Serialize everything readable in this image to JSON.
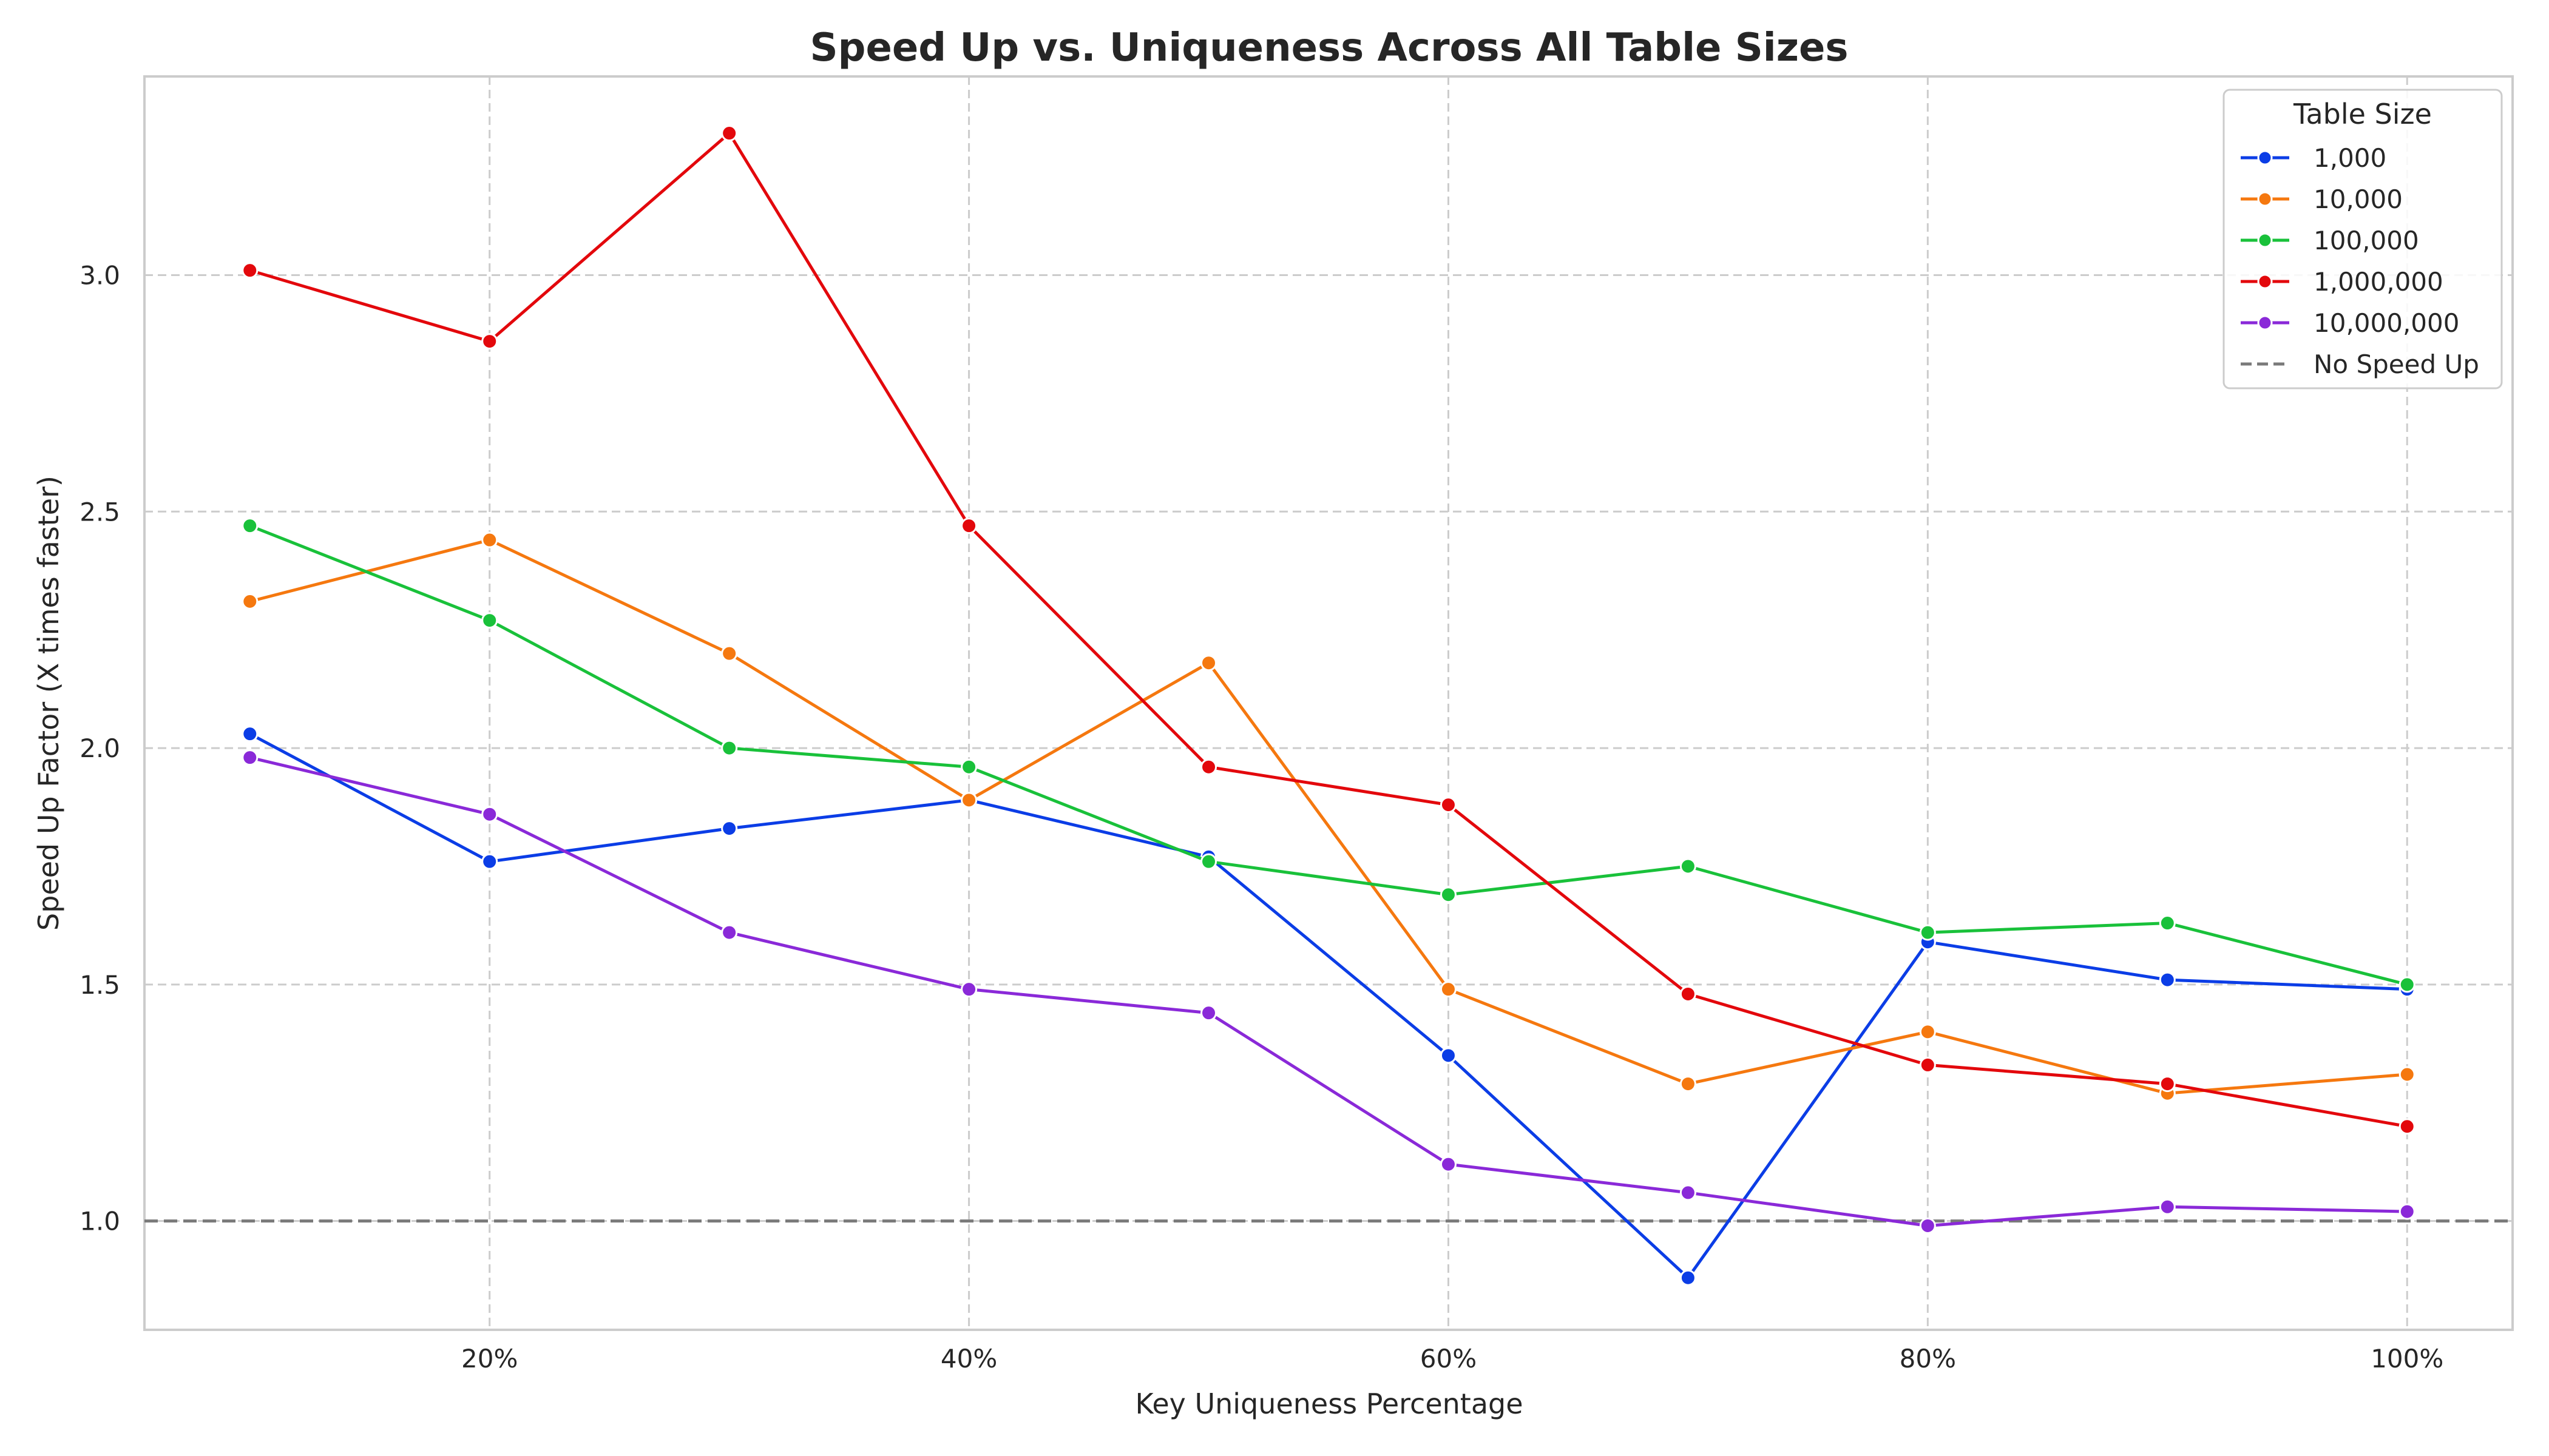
{
  "chart_data": {
    "type": "line",
    "title": "Speed Up vs. Uniqueness Across All Table Sizes",
    "xlabel": "Key Uniqueness Percentage",
    "ylabel": "Speed Up Factor (X times faster)",
    "x": [
      10,
      20,
      30,
      40,
      50,
      60,
      70,
      80,
      90,
      100
    ],
    "x_ticks": [
      20,
      40,
      60,
      80,
      100
    ],
    "x_tick_labels": [
      "20%",
      "40%",
      "60%",
      "80%",
      "100%"
    ],
    "xlim": [
      5.6,
      104.4
    ],
    "y_ticks": [
      1.0,
      1.5,
      2.0,
      2.5,
      3.0
    ],
    "y_tick_labels": [
      "1.0",
      "1.5",
      "2.0",
      "2.5",
      "3.0"
    ],
    "ylim": [
      0.77,
      3.42
    ],
    "grid": true,
    "legend_position": "top-right",
    "legend_title": "Table Size",
    "series": [
      {
        "name": "1,000",
        "color": "#0b3de6",
        "values": [
          2.03,
          1.76,
          1.83,
          1.89,
          1.77,
          1.35,
          0.88,
          1.59,
          1.51,
          1.49
        ]
      },
      {
        "name": "10,000",
        "color": "#f5780f",
        "values": [
          2.31,
          2.44,
          2.2,
          1.89,
          2.18,
          1.49,
          1.29,
          1.4,
          1.27,
          1.31
        ]
      },
      {
        "name": "100,000",
        "color": "#19c13a",
        "values": [
          2.47,
          2.27,
          2.0,
          1.96,
          1.76,
          1.69,
          1.75,
          1.61,
          1.63,
          1.5
        ]
      },
      {
        "name": "1,000,000",
        "color": "#e3080c",
        "values": [
          3.01,
          2.86,
          3.3,
          2.47,
          1.96,
          1.88,
          1.48,
          1.33,
          1.29,
          1.2
        ]
      },
      {
        "name": "10,000,000",
        "color": "#8a29d8",
        "values": [
          1.98,
          1.86,
          1.61,
          1.49,
          1.44,
          1.12,
          1.06,
          0.99,
          1.03,
          1.02
        ]
      }
    ],
    "reference_line": {
      "name": "No Speed Up",
      "y": 1.0,
      "color": "#7a7a7a",
      "style": "dashed"
    }
  }
}
